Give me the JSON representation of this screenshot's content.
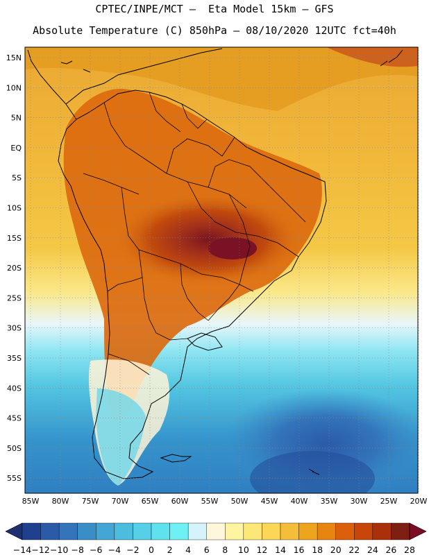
{
  "header": {
    "line1": "CPTEC/INPE/MCT –  Eta Model 15km – GFS",
    "line2": "Absolute Temperature (C) 850hPa – 08/10/2020 12UTC fct=40h"
  },
  "axes": {
    "lat_labels": [
      "15N",
      "10N",
      "5N",
      "EQ",
      "5S",
      "10S",
      "15S",
      "20S",
      "25S",
      "30S",
      "35S",
      "40S",
      "45S",
      "50S",
      "55S"
    ],
    "lon_labels": [
      "85W",
      "80W",
      "75W",
      "70W",
      "65W",
      "60W",
      "55W",
      "50W",
      "45W",
      "40W",
      "35W",
      "30W",
      "25W",
      "20W"
    ]
  },
  "colorbar": {
    "labels": [
      "-14",
      "-12",
      "-10",
      "-8",
      "-6",
      "-4",
      "-2",
      "0",
      "2",
      "4",
      "6",
      "8",
      "10",
      "12",
      "14",
      "16",
      "18",
      "20",
      "22",
      "24",
      "26",
      "28"
    ],
    "colors": [
      "#1f3f8f",
      "#2a5aa8",
      "#3374bb",
      "#3a8ec8",
      "#44a6d4",
      "#4dbdde",
      "#57cfe6",
      "#60e2ee",
      "#6ff0f5",
      "#d4f3fb",
      "#fff7dc",
      "#fff5a0",
      "#fde877",
      "#fbd657",
      "#f4be3a",
      "#efa41e",
      "#e78510",
      "#dc600a",
      "#c84609",
      "#a9300b",
      "#7d1f12"
    ],
    "under_color": "#20306e",
    "over_color": "#7b0c26"
  },
  "colors": {
    "background_ocean_north": "#f0b43c",
    "background_ocean_south": "#3aa3d3",
    "border": "#000000"
  }
}
